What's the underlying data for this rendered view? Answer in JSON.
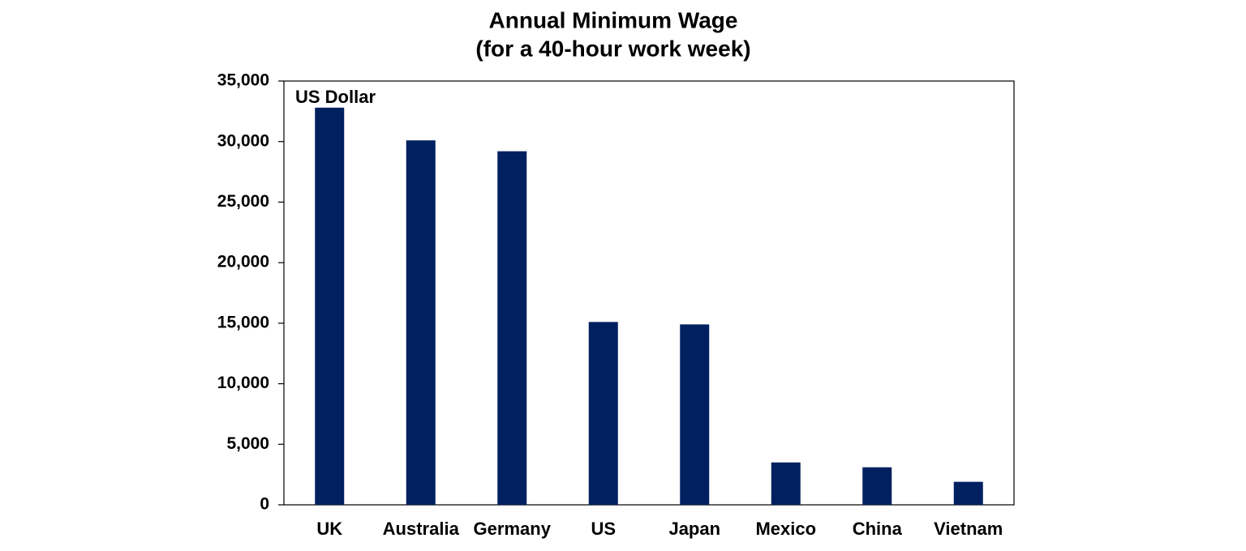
{
  "chart_data": {
    "type": "bar",
    "title": "Annual Minimum Wage",
    "subtitle": "(for a 40-hour work week)",
    "y_axis_label": "US Dollar",
    "categories": [
      "UK",
      "Australia",
      "Germany",
      "US",
      "Japan",
      "Mexico",
      "China",
      "Vietnam"
    ],
    "values": [
      32800,
      30100,
      29200,
      15100,
      14900,
      3500,
      3100,
      1900
    ],
    "color": "#002060",
    "ylim": [
      0,
      35000
    ],
    "yticks": [
      0,
      {
        "value": 5000,
        "label": "5,000"
      },
      {
        "value": 10000,
        "label": "10,000"
      },
      {
        "value": 15000,
        "label": "15,000"
      },
      {
        "value": 20000,
        "label": "20,000"
      },
      {
        "value": 25000,
        "label": "25,000"
      },
      {
        "value": 30000,
        "label": "30,000"
      },
      {
        "value": 35000,
        "label": "35,000"
      }
    ],
    "grid": false
  }
}
